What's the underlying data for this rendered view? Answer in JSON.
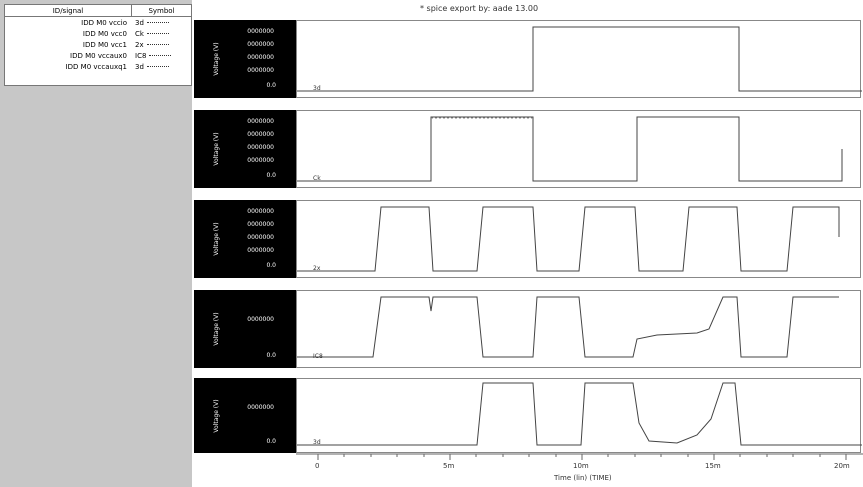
{
  "title": "* spice export by: aade 13.00",
  "legend": {
    "header": [
      "ID/signal",
      "Symbol"
    ],
    "rows": [
      {
        "name": "IDD M0 vccio",
        "sym": "3d"
      },
      {
        "name": "IDD M0 vcc0",
        "sym": "Ck"
      },
      {
        "name": "IDD M0 vcc1",
        "sym": "2x"
      },
      {
        "name": "IDD M0 vccaux0",
        "sym": "IC8"
      },
      {
        "name": "IDD M0 vccauxq1",
        "sym": "3d"
      }
    ]
  },
  "plots": [
    {
      "ylabel": "Voltage (V)",
      "ticks": [
        "0000000",
        "0000000",
        "0000000",
        "0000000"
      ],
      "min_label": "0.0",
      "marker": "3d"
    },
    {
      "ylabel": "Voltage (V)",
      "ticks": [
        "0000000",
        "0000000",
        "0000000",
        "0000000"
      ],
      "min_label": "0.0",
      "marker": "Ck"
    },
    {
      "ylabel": "Voltage (V)",
      "ticks": [
        "0000000",
        "0000000",
        "0000000",
        "0000000"
      ],
      "min_label": "0.0",
      "marker": "2x"
    },
    {
      "ylabel": "Voltage (V)",
      "ticks": [
        "0000000"
      ],
      "min_label": "0.0",
      "marker": "IC8"
    },
    {
      "ylabel": "Voltage (V)",
      "ticks": [
        "0000000"
      ],
      "min_label": "0.0",
      "marker": "3d"
    }
  ],
  "xaxis": {
    "ticks": [
      "0",
      "5m",
      "10m",
      "15m",
      "20m"
    ],
    "label": "Time (lin) (TIME)"
  }
}
